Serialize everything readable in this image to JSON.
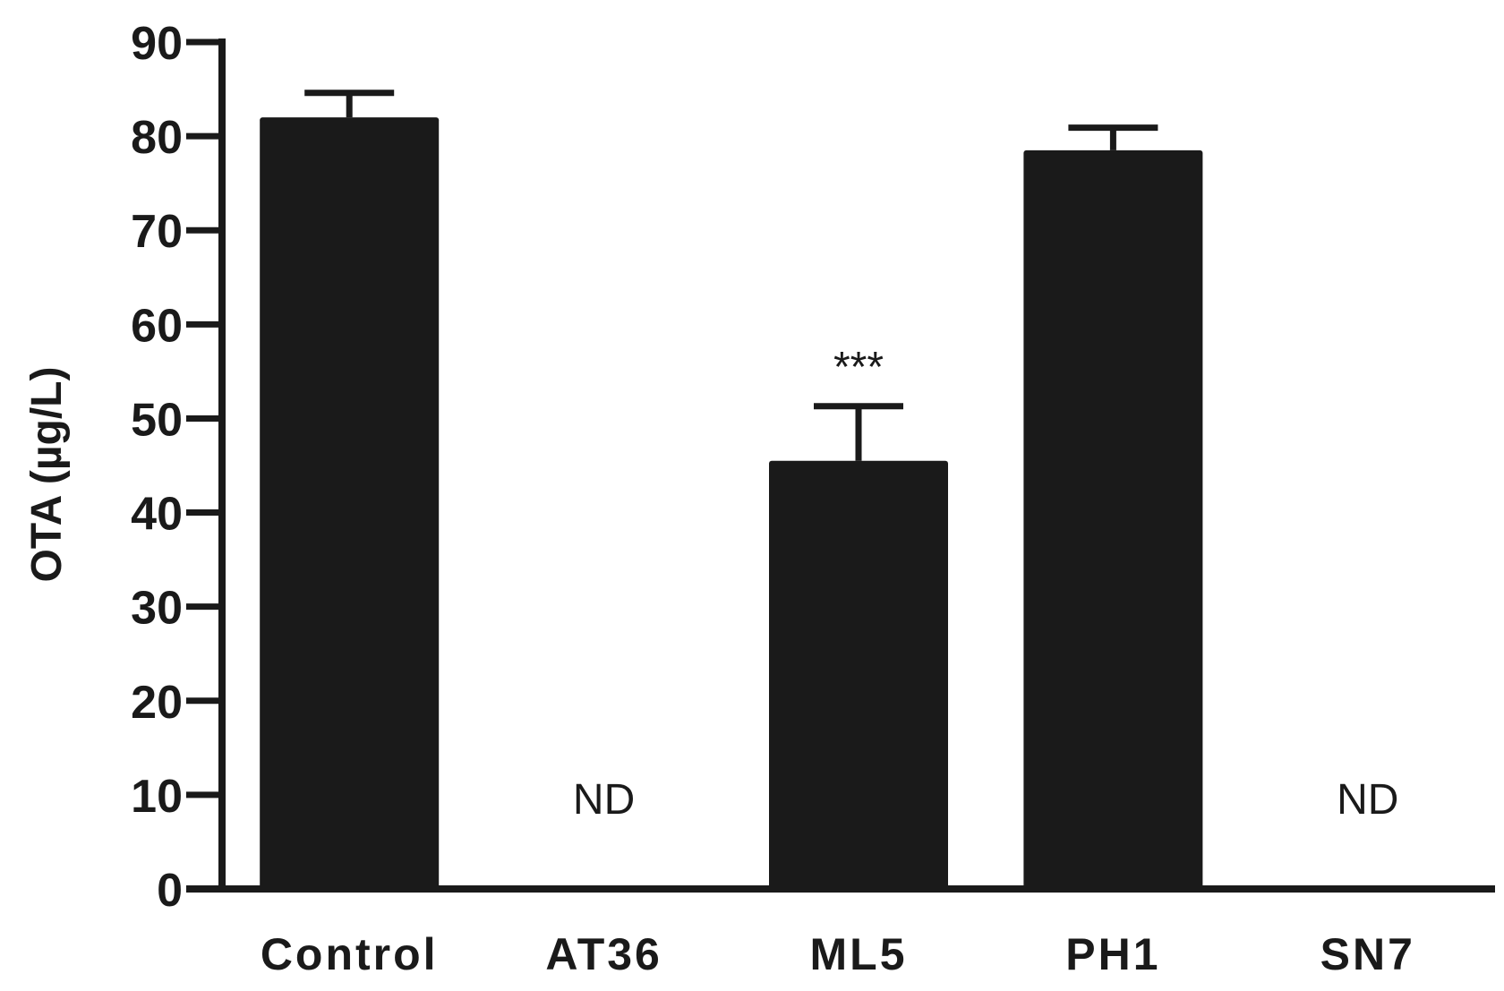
{
  "chart_data": {
    "type": "bar",
    "categories": [
      "Control",
      "AT36",
      "ML5",
      "PH1",
      "SN7"
    ],
    "values": [
      82,
      0,
      45.5,
      78.5,
      0
    ],
    "errors": [
      2.6,
      0,
      5.8,
      2.4,
      0
    ],
    "annotations": [
      "",
      "ND",
      "***",
      "",
      "ND"
    ],
    "ylabel": "OTA (µg/L)",
    "xlabel": "",
    "title": "",
    "ylim": [
      0,
      90
    ],
    "yticks": [
      0,
      10,
      20,
      30,
      40,
      50,
      60,
      70,
      80,
      90
    ],
    "bar_color": "#1a1a1a",
    "grid": false
  }
}
